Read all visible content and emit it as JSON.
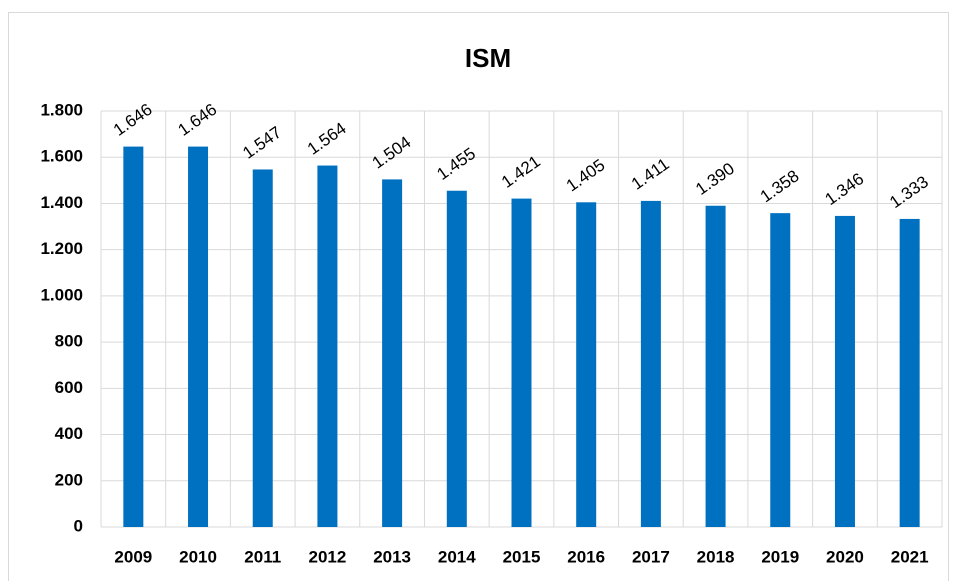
{
  "chart_data": {
    "type": "bar",
    "title": "ISM",
    "categories": [
      "2009",
      "2010",
      "2011",
      "2012",
      "2013",
      "2014",
      "2015",
      "2016",
      "2017",
      "2018",
      "2019",
      "2020",
      "2021"
    ],
    "values": [
      1646,
      1646,
      1547,
      1564,
      1504,
      1455,
      1421,
      1405,
      1411,
      1390,
      1358,
      1346,
      1333
    ],
    "value_labels": [
      "1.646",
      "1.646",
      "1.547",
      "1.564",
      "1.504",
      "1.455",
      "1.421",
      "1.405",
      "1.411",
      "1.390",
      "1.358",
      "1.346",
      "1.333"
    ],
    "color": "#0070c0",
    "ylim": [
      0,
      1800
    ],
    "yticks": [
      0,
      200,
      400,
      600,
      800,
      {
        "value": 1000,
        "label": "1.000"
      },
      {
        "value": 1200,
        "label": "1.200"
      },
      {
        "value": 1400,
        "label": "1.400"
      },
      {
        "value": 1600,
        "label": "1.600"
      },
      {
        "value": 1800,
        "label": "1.800"
      }
    ],
    "grid": true
  }
}
